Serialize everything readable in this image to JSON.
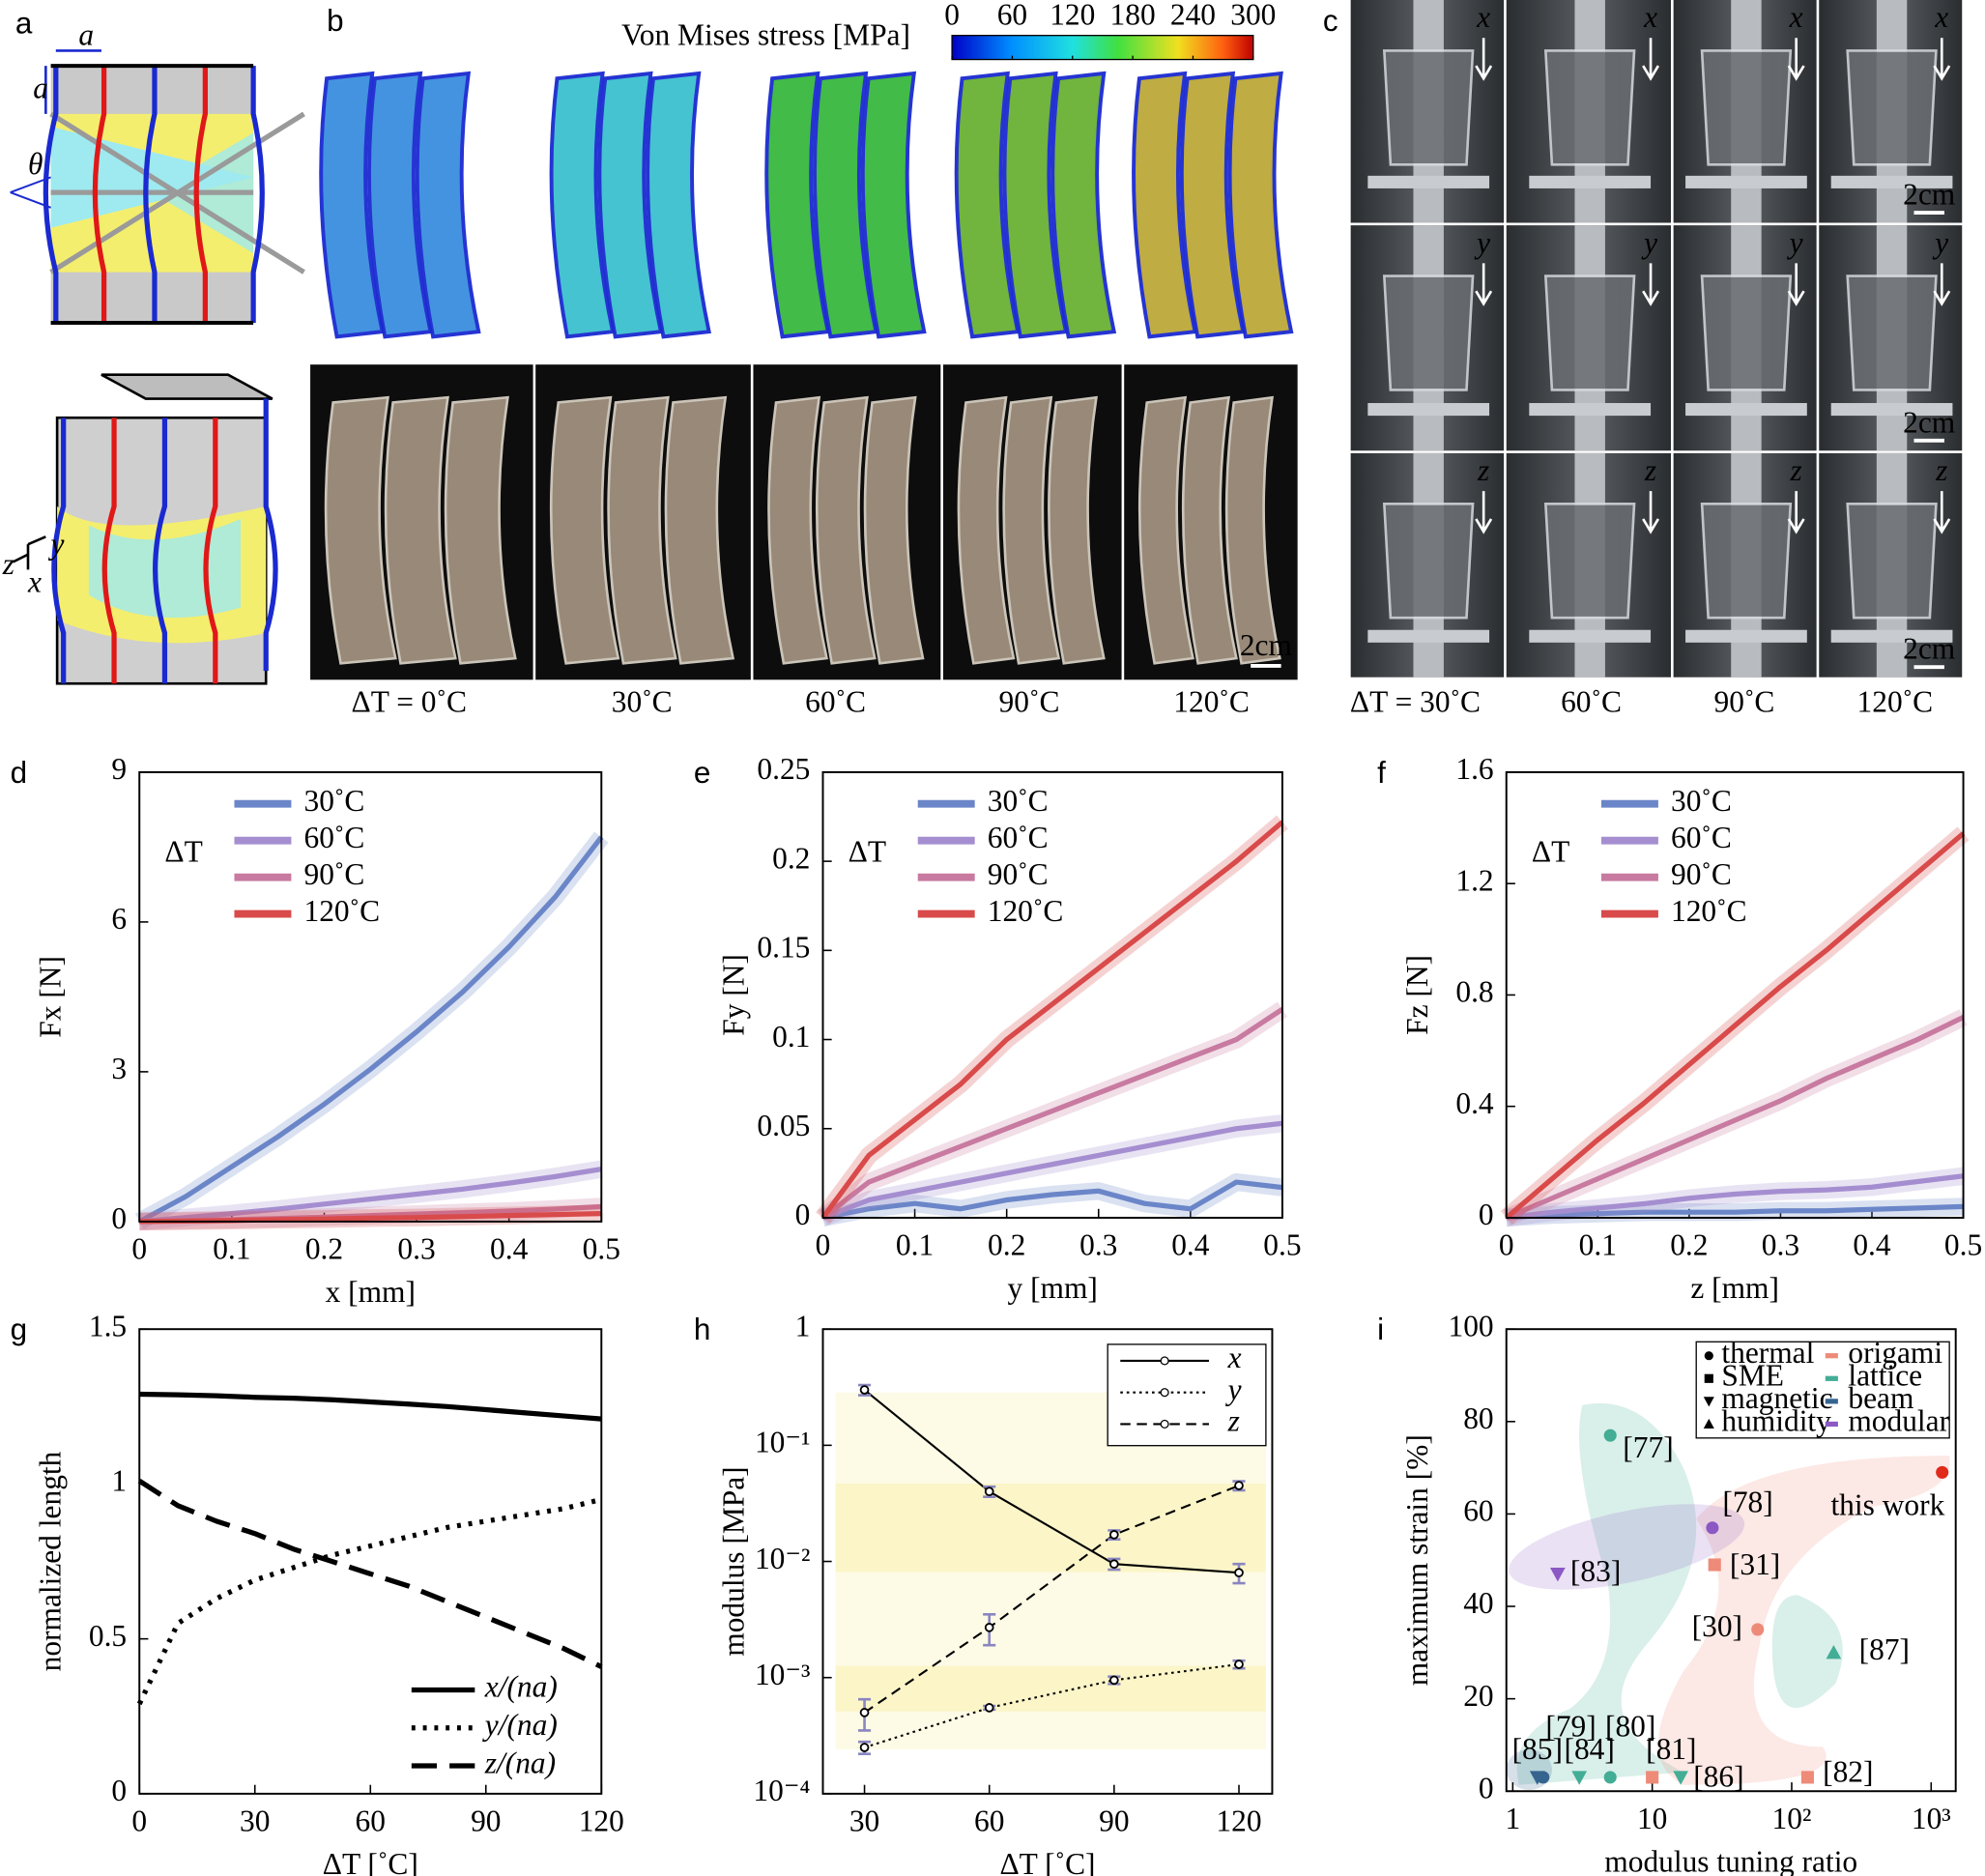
{
  "panels": {
    "a": {
      "label": "a",
      "dimension": "a",
      "angle": "θ",
      "axes": [
        "z",
        "y",
        "x"
      ]
    },
    "b": {
      "label": "b",
      "colorbar": {
        "title": "Von Mises stress [MPa]",
        "range": [
          0,
          300
        ],
        "ticks": [
          0,
          60,
          120,
          180,
          240,
          300
        ]
      },
      "conditions": [
        "ΔT = 0˚C",
        "30˚C",
        "60˚C",
        "90˚C",
        "120˚C"
      ],
      "scale_bar": "2cm"
    },
    "c": {
      "label": "c",
      "directions": [
        "x",
        "y",
        "z"
      ],
      "conditions": [
        "ΔT = 30˚C",
        "60˚C",
        "90˚C",
        "120˚C"
      ],
      "scale_bar": "2cm"
    }
  },
  "chart_data": [
    {
      "panel": "d",
      "type": "line",
      "xlabel": "x [mm]",
      "ylabel": "Fx [N]",
      "x": [
        0,
        0.05,
        0.1,
        0.15,
        0.2,
        0.25,
        0.3,
        0.35,
        0.4,
        0.45,
        0.5
      ],
      "xlim": [
        0,
        0.5
      ],
      "xticks": [
        0,
        0.1,
        0.2,
        0.3,
        0.4,
        0.5
      ],
      "ylim": [
        0,
        9
      ],
      "yticks": [
        0,
        3,
        6,
        9
      ],
      "legend": "upper left",
      "legend_title": "ΔT",
      "shaded_bands": true,
      "series": [
        {
          "name": "30˚C",
          "color": "#6b86c8",
          "values": [
            0,
            0.5,
            1.1,
            1.7,
            2.35,
            3.05,
            3.8,
            4.6,
            5.5,
            6.5,
            7.7
          ]
        },
        {
          "name": "60˚C",
          "color": "#a58ed0",
          "values": [
            0,
            0.08,
            0.16,
            0.25,
            0.35,
            0.45,
            0.55,
            0.65,
            0.77,
            0.9,
            1.05
          ]
        },
        {
          "name": "90˚C",
          "color": "#c87aa0",
          "values": [
            0,
            0.02,
            0.04,
            0.06,
            0.09,
            0.12,
            0.15,
            0.18,
            0.21,
            0.25,
            0.3
          ]
        },
        {
          "name": "120˚C",
          "color": "#d94a4a",
          "values": [
            0,
            0.01,
            0.02,
            0.04,
            0.05,
            0.07,
            0.08,
            0.1,
            0.12,
            0.14,
            0.16
          ]
        }
      ]
    },
    {
      "panel": "e",
      "type": "line",
      "xlabel": "y [mm]",
      "ylabel": "Fy [N]",
      "x": [
        0,
        0.05,
        0.1,
        0.15,
        0.2,
        0.25,
        0.3,
        0.35,
        0.4,
        0.45,
        0.5
      ],
      "xlim": [
        0,
        0.5
      ],
      "xticks": [
        0,
        0.1,
        0.2,
        0.3,
        0.4,
        0.5
      ],
      "ylim": [
        0,
        0.25
      ],
      "yticks": [
        0,
        0.05,
        0.1,
        0.15,
        0.2,
        0.25
      ],
      "legend": "upper left",
      "legend_title": "ΔT",
      "shaded_bands": true,
      "series": [
        {
          "name": "30˚C",
          "color": "#6b86c8",
          "values": [
            0,
            0.005,
            0.008,
            0.005,
            0.01,
            0.013,
            0.015,
            0.008,
            0.005,
            0.02,
            0.017
          ]
        },
        {
          "name": "60˚C",
          "color": "#a58ed0",
          "values": [
            0,
            0.01,
            0.015,
            0.02,
            0.025,
            0.03,
            0.035,
            0.04,
            0.045,
            0.05,
            0.053
          ]
        },
        {
          "name": "90˚C",
          "color": "#c87aa0",
          "values": [
            0,
            0.02,
            0.03,
            0.04,
            0.05,
            0.06,
            0.07,
            0.08,
            0.09,
            0.1,
            0.117
          ]
        },
        {
          "name": "120˚C",
          "color": "#d94a4a",
          "values": [
            0,
            0.035,
            0.055,
            0.075,
            0.1,
            0.12,
            0.14,
            0.16,
            0.18,
            0.2,
            0.222
          ]
        }
      ]
    },
    {
      "panel": "f",
      "type": "line",
      "xlabel": "z [mm]",
      "ylabel": "Fz [N]",
      "x": [
        0,
        0.05,
        0.1,
        0.15,
        0.2,
        0.25,
        0.3,
        0.35,
        0.4,
        0.45,
        0.5
      ],
      "xlim": [
        0,
        0.5
      ],
      "xticks": [
        0,
        0.1,
        0.2,
        0.3,
        0.4,
        0.5
      ],
      "ylim": [
        0,
        1.6
      ],
      "yticks": [
        0,
        0.4,
        0.8,
        1.2,
        1.6
      ],
      "legend": "upper left",
      "legend_title": "ΔT",
      "shaded_bands": true,
      "series": [
        {
          "name": "30˚C",
          "color": "#6b86c8",
          "values": [
            0,
            0.01,
            0.015,
            0.02,
            0.02,
            0.02,
            0.025,
            0.025,
            0.03,
            0.035,
            0.04
          ]
        },
        {
          "name": "60˚C",
          "color": "#a58ed0",
          "values": [
            0,
            0.02,
            0.035,
            0.05,
            0.07,
            0.085,
            0.095,
            0.1,
            0.11,
            0.13,
            0.15
          ]
        },
        {
          "name": "90˚C",
          "color": "#c87aa0",
          "values": [
            0,
            0.07,
            0.14,
            0.21,
            0.28,
            0.35,
            0.42,
            0.5,
            0.57,
            0.64,
            0.72
          ]
        },
        {
          "name": "120˚C",
          "color": "#d94a4a",
          "values": [
            0,
            0.14,
            0.28,
            0.41,
            0.55,
            0.69,
            0.83,
            0.96,
            1.1,
            1.24,
            1.38
          ]
        }
      ]
    },
    {
      "panel": "g",
      "type": "line",
      "xlabel": "ΔT [˚C]",
      "ylabel": "normalized length",
      "x": [
        0,
        10,
        20,
        30,
        40,
        50,
        60,
        70,
        80,
        90,
        100,
        110,
        120
      ],
      "xlim": [
        0,
        120
      ],
      "xticks": [
        0,
        30,
        60,
        90,
        120
      ],
      "ylim": [
        0,
        1.5
      ],
      "yticks": [
        0,
        0.5,
        1,
        1.5
      ],
      "legend": "lower right",
      "series": [
        {
          "name": "x/(na)",
          "color": "#000000",
          "dash": "solid",
          "values": [
            1.29,
            1.288,
            1.285,
            1.28,
            1.277,
            1.272,
            1.265,
            1.258,
            1.25,
            1.24,
            1.23,
            1.22,
            1.21
          ]
        },
        {
          "name": "y/(na)",
          "color": "#000000",
          "dash": "dotted",
          "values": [
            0.29,
            0.55,
            0.63,
            0.69,
            0.73,
            0.77,
            0.8,
            0.83,
            0.86,
            0.88,
            0.9,
            0.92,
            0.95
          ]
        },
        {
          "name": "z/(na)",
          "color": "#000000",
          "dash": "dashed",
          "values": [
            1.01,
            0.93,
            0.88,
            0.84,
            0.79,
            0.75,
            0.71,
            0.67,
            0.62,
            0.57,
            0.52,
            0.47,
            0.41
          ]
        }
      ]
    },
    {
      "panel": "h",
      "type": "line",
      "markers": true,
      "xlabel": "ΔT [˚C]",
      "ylabel": "modulus [MPa]",
      "x": [
        30,
        60,
        90,
        120
      ],
      "xlim": [
        20,
        128
      ],
      "xticks": [
        30,
        60,
        90,
        120
      ],
      "ylog": true,
      "ylim": [
        0.0001,
        1
      ],
      "yticks": [
        {
          "value": 0.0001,
          "label": "10⁻⁴"
        },
        {
          "value": 0.001,
          "label": "10⁻³"
        },
        {
          "value": 0.01,
          "label": "10⁻²"
        },
        {
          "value": 0.1,
          "label": "10⁻¹"
        },
        1
      ],
      "legend": "upper right",
      "error_color": "#8a86c0",
      "series": [
        {
          "name": "x",
          "color": "#000000",
          "dash": "solid",
          "values": [
            0.3,
            0.04,
            0.0095,
            0.008
          ],
          "errors": [
            0.03,
            0.004,
            0.001,
            0.0015
          ]
        },
        {
          "name": "y",
          "color": "#000000",
          "dash": "dotted",
          "values": [
            0.00025,
            0.00055,
            0.00095,
            0.0013
          ],
          "errors": [
            3e-05,
            2e-05,
            7e-05,
            0.0001
          ]
        },
        {
          "name": "z",
          "color": "#000000",
          "dash": "dashed",
          "values": [
            0.0005,
            0.0027,
            0.017,
            0.045
          ],
          "errors": [
            0.00015,
            0.0008,
            0.0015,
            0.004
          ]
        }
      ]
    },
    {
      "panel": "i",
      "type": "scatter",
      "xlabel": "modulus tuning ratio",
      "ylabel": "maximum strain [%]",
      "xlog": true,
      "xlim": [
        0.9,
        1500
      ],
      "xticks": [
        1,
        10,
        {
          "value": 100,
          "label": "10²"
        },
        {
          "value": 1000,
          "label": "10³"
        }
      ],
      "ylim": [
        0,
        100
      ],
      "yticks": [
        0,
        20,
        40,
        60,
        80,
        100
      ],
      "legend": "upper right",
      "stimuli": [
        {
          "name": "thermal",
          "marker": "circle"
        },
        {
          "name": "SME",
          "marker": "square"
        },
        {
          "name": "magnetic",
          "marker": "triangle-down"
        },
        {
          "name": "humidity",
          "marker": "triangle-up"
        }
      ],
      "materials": [
        {
          "name": "origami",
          "color": "#ee8a78"
        },
        {
          "name": "lattice",
          "color": "#43ad95"
        },
        {
          "name": "beam",
          "color": "#35648f"
        },
        {
          "name": "modular",
          "color": "#8b58c4"
        }
      ],
      "points": [
        {
          "label": "[85]",
          "x": 1.5,
          "y": 3,
          "stimulus": "magnetic",
          "material": "beam"
        },
        {
          "label": "[79]",
          "x": 1.65,
          "y": 3,
          "stimulus": "thermal",
          "material": "beam"
        },
        {
          "label": "[84]",
          "x": 3,
          "y": 3,
          "stimulus": "magnetic",
          "material": "lattice"
        },
        {
          "label": "[80]",
          "x": 5,
          "y": 3,
          "stimulus": "thermal",
          "material": "lattice"
        },
        {
          "label": "[81]",
          "x": 10,
          "y": 3,
          "stimulus": "SME",
          "material": "origami"
        },
        {
          "label": "[86]",
          "x": 16,
          "y": 3,
          "stimulus": "magnetic",
          "material": "lattice"
        },
        {
          "label": "[82]",
          "x": 130,
          "y": 3,
          "stimulus": "SME",
          "material": "origami"
        },
        {
          "label": "[30]",
          "x": 57,
          "y": 35,
          "stimulus": "thermal",
          "material": "origami"
        },
        {
          "label": "[87]",
          "x": 200,
          "y": 30,
          "stimulus": "humidity",
          "material": "lattice"
        },
        {
          "label": "[31]",
          "x": 28,
          "y": 49,
          "stimulus": "SME",
          "material": "origami"
        },
        {
          "label": "[78]",
          "x": 27,
          "y": 57,
          "stimulus": "thermal",
          "material": "modular"
        },
        {
          "label": "[83]",
          "x": 2.1,
          "y": 47,
          "stimulus": "magnetic",
          "material": "modular"
        },
        {
          "label": "[77]",
          "x": 5,
          "y": 77,
          "stimulus": "thermal",
          "material": "lattice"
        },
        {
          "label": "this work",
          "x": 1200,
          "y": 69,
          "stimulus": "thermal",
          "material": "origami",
          "color": "#e02a1a"
        }
      ]
    }
  ]
}
